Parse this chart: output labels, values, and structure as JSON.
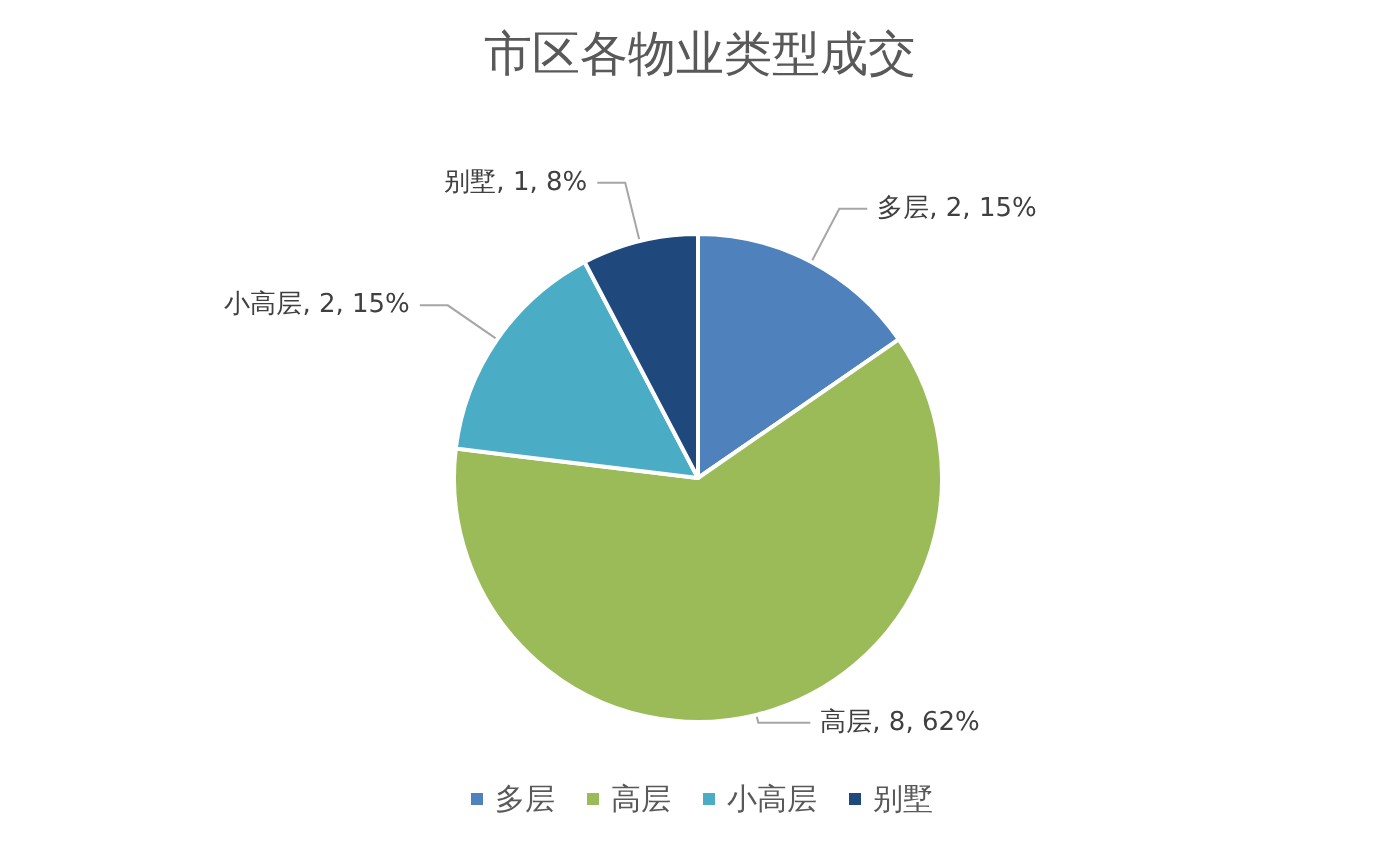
{
  "chart_data": {
    "type": "pie",
    "title": "市区各物业类型成交",
    "categories": [
      "多层",
      "高层",
      "小高层",
      "别墅"
    ],
    "values": [
      2,
      8,
      2,
      1
    ],
    "colors": [
      "#4f81bd",
      "#9bbb59",
      "#4bacc6",
      "#1f497d"
    ],
    "value_labels": [
      "多层, 2, 15%",
      "高层, 8, 62%",
      "小高层, 2, 15%",
      "别墅, 1, 8%"
    ],
    "legend": "bottom"
  }
}
